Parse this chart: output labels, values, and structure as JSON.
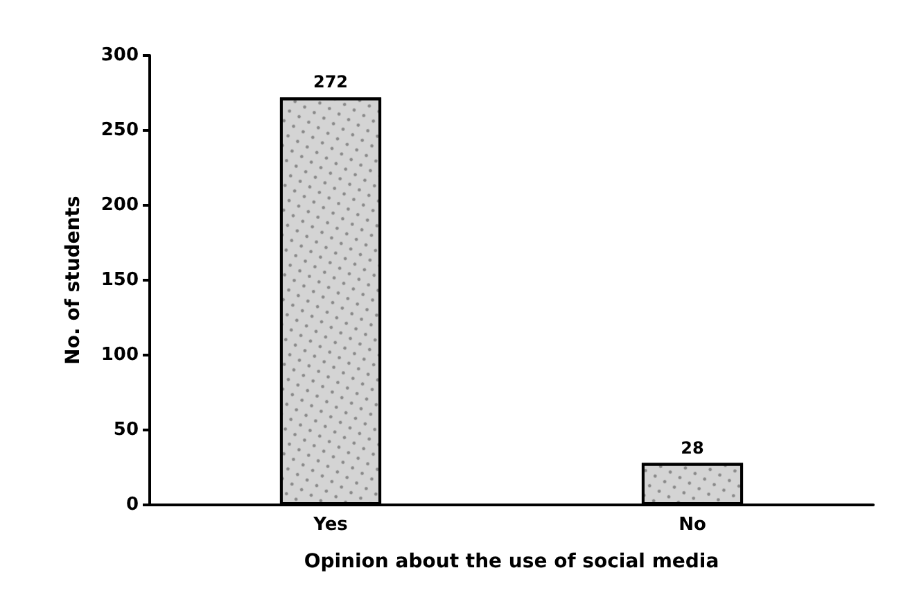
{
  "chart_data": {
    "type": "bar",
    "xlabel": "Opinion about the use of social media",
    "ylabel": "No. of students",
    "categories": [
      "Yes",
      "No"
    ],
    "values": [
      272,
      28
    ],
    "color": "#d4d4d4",
    "ylim": [
      0,
      300
    ],
    "yticks": [
      0,
      50,
      100,
      150,
      200,
      250,
      300
    ],
    "grid": false,
    "data_labels": true
  }
}
